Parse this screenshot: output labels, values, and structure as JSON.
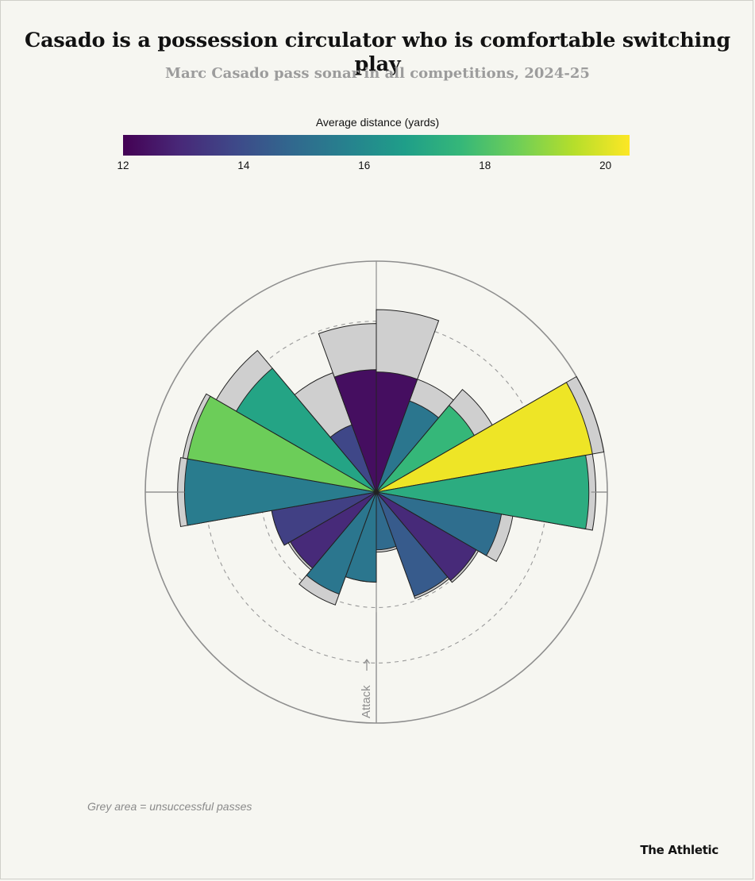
{
  "title": "Casado is a possession circulator who is comfortable switching play",
  "subtitle": "Marc Casado pass sonar in all competitions, 2024-25",
  "colorbar": {
    "title": "Average distance (yards)",
    "ticks": [
      "12",
      "14",
      "16",
      "18",
      "20"
    ],
    "min": 12,
    "max": 20.4
  },
  "note": "Grey area = unsuccessful passes",
  "brand": "The Athletic",
  "attack_label": "Attack",
  "chart_data": {
    "type": "pass-sonar (polar bar)",
    "angle_convention": "degrees clockwise from up (up = direction of attack); each bin spans 20 degrees",
    "bins": [
      {
        "angle": 10,
        "successful": 0.52,
        "total": 0.79,
        "avg_distance": 12.3
      },
      {
        "angle": 30,
        "successful": 0.42,
        "total": 0.52,
        "avg_distance": 15.3
      },
      {
        "angle": 50,
        "successful": 0.49,
        "total": 0.58,
        "avg_distance": 17.6
      },
      {
        "angle": 70,
        "successful": 0.95,
        "total": 1.0,
        "avg_distance": 20.2
      },
      {
        "angle": 90,
        "successful": 0.92,
        "total": 0.95,
        "avg_distance": 17.2
      },
      {
        "angle": 110,
        "successful": 0.55,
        "total": 0.6,
        "avg_distance": 15.0
      },
      {
        "angle": 130,
        "successful": 0.5,
        "total": 0.51,
        "avg_distance": 13.0
      },
      {
        "angle": 150,
        "successful": 0.48,
        "total": 0.49,
        "avg_distance": 14.4
      },
      {
        "angle": 170,
        "successful": 0.25,
        "total": 0.26,
        "avg_distance": 14.9
      },
      {
        "angle": 190,
        "successful": 0.39,
        "total": 0.39,
        "avg_distance": 15.3
      },
      {
        "angle": 210,
        "successful": 0.47,
        "total": 0.52,
        "avg_distance": 15.3
      },
      {
        "angle": 230,
        "successful": 0.43,
        "total": 0.44,
        "avg_distance": 13.0
      },
      {
        "angle": 250,
        "successful": 0.46,
        "total": 0.46,
        "avg_distance": 13.6
      },
      {
        "angle": 270,
        "successful": 0.83,
        "total": 0.86,
        "avg_distance": 15.5
      },
      {
        "angle": 290,
        "successful": 0.83,
        "total": 0.85,
        "avg_distance": 18.5
      },
      {
        "angle": 310,
        "successful": 0.7,
        "total": 0.8,
        "avg_distance": 16.9
      },
      {
        "angle": 330,
        "successful": 0.31,
        "total": 0.55,
        "avg_distance": 13.8
      },
      {
        "angle": 350,
        "successful": 0.53,
        "total": 0.73,
        "avg_distance": 12.3
      }
    ]
  }
}
